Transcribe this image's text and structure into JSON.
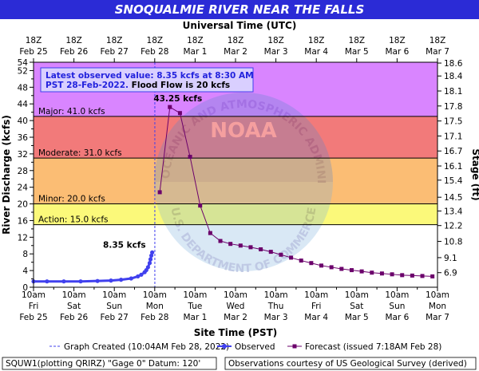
{
  "title": "SNOQUALMIE RIVER NEAR THE FALLS",
  "top_axis_title": "Universal Time (UTC)",
  "bottom_axis_title": "Site Time (PST)",
  "left_axis_title": "River Discharge (kcfs)",
  "right_axis_title": "Stage (ft)",
  "info_box": {
    "line1": "Latest observed value: 8.35 kcfs at 8:30 AM",
    "line2_a": "PST 28-Feb-2022.",
    "line2_b": " Flood Flow is 20 kcfs"
  },
  "annotations": {
    "peak": "43.25 kcfs",
    "latest": "8.35 kcfs"
  },
  "legend": {
    "created": "Graph Created (10:04AM Feb 28, 2022)",
    "observed": "Observed",
    "forecast": "Forecast (issued 7:18AM Feb 28)"
  },
  "footer": {
    "left": "SQUW1(plotting QRIRZ) \"Gage 0\" Datum: 120'",
    "right": "Observations courtesy of US Geological Survey (derived)"
  },
  "watermark": {
    "top": "NATIONAL OCEANIC AND ATMOSPHERIC ADMINISTRATION",
    "bottom": "U.S. DEPARTMENT OF COMMERCE",
    "center": "NOAA"
  },
  "colors": {
    "title_bg": "#2b2bd6",
    "major": "#d985ff",
    "moderate": "#f27a7a",
    "minor": "#fbbd74",
    "action": "#fbf97a",
    "normal": "#ffffff",
    "observed": "#4040ee",
    "forecast": "#6b006b",
    "created_line": "#4040ee"
  },
  "chart_data": {
    "type": "line",
    "title": "SNOQUALMIE RIVER NEAR THE FALLS",
    "xlabel": "Site Time (PST)",
    "ylabel": "River Discharge (kcfs)",
    "y2label": "Stage (ft)",
    "x_top_label": "Universal Time (UTC)",
    "ylim": [
      0,
      54
    ],
    "xlim": [
      "2022-02-25 10:00",
      "2022-03-07 10:00"
    ],
    "y_ticks": [
      0,
      4,
      8,
      12,
      16,
      20,
      24,
      28,
      32,
      36,
      40,
      44,
      48,
      52,
      54
    ],
    "y_minor_ticks": [
      2,
      6,
      10,
      14,
      18,
      22,
      26,
      30,
      34,
      38,
      42,
      46,
      50
    ],
    "right_ticks": [
      {
        "label": "6.9",
        "flow": 3.5
      },
      {
        "label": "9.1",
        "flow": 7.1
      },
      {
        "label": "10.8",
        "flow": 11.0
      },
      {
        "label": "12.2",
        "flow": 14.8
      },
      {
        "label": "13.4",
        "flow": 18.3
      },
      {
        "label": "14.5",
        "flow": 21.6
      },
      {
        "label": "15.4",
        "flow": 25.7
      },
      {
        "label": "16.1",
        "flow": 29.1
      },
      {
        "label": "16.7",
        "flow": 32.7
      },
      {
        "label": "17.1",
        "flow": 36.3
      },
      {
        "label": "17.5",
        "flow": 39.9
      },
      {
        "label": "17.8",
        "flow": 43.5
      },
      {
        "label": "18.1",
        "flow": 47.1
      },
      {
        "label": "18.4",
        "flow": 50.7
      },
      {
        "label": "18.6",
        "flow": 53.8
      }
    ],
    "x_ticks_bottom": [
      {
        "t": "2022-02-25 10:00",
        "l1": "10am",
        "l2": "Fri",
        "l3": "Feb 25"
      },
      {
        "t": "2022-02-26 10:00",
        "l1": "10am",
        "l2": "Sat",
        "l3": "Feb 26"
      },
      {
        "t": "2022-02-27 10:00",
        "l1": "10am",
        "l2": "Sun",
        "l3": "Feb 27"
      },
      {
        "t": "2022-02-28 10:00",
        "l1": "10am",
        "l2": "Mon",
        "l3": "Feb 28"
      },
      {
        "t": "2022-03-01 10:00",
        "l1": "10am",
        "l2": "Tue",
        "l3": "Mar 1"
      },
      {
        "t": "2022-03-02 10:00",
        "l1": "10am",
        "l2": "Wed",
        "l3": "Mar 2"
      },
      {
        "t": "2022-03-03 10:00",
        "l1": "10am",
        "l2": "Thu",
        "l3": "Mar 3"
      },
      {
        "t": "2022-03-04 10:00",
        "l1": "10am",
        "l2": "Fri",
        "l3": "Mar 4"
      },
      {
        "t": "2022-03-05 10:00",
        "l1": "10am",
        "l2": "Sat",
        "l3": "Mar 5"
      },
      {
        "t": "2022-03-06 10:00",
        "l1": "10am",
        "l2": "Sun",
        "l3": "Mar 6"
      },
      {
        "t": "2022-03-07 10:00",
        "l1": "10am",
        "l2": "Mon",
        "l3": "Mar 7"
      }
    ],
    "x_ticks_top": [
      {
        "t": "2022-02-25 10:00",
        "l1": "18Z",
        "l2": "Feb 25"
      },
      {
        "t": "2022-02-26 10:00",
        "l1": "18Z",
        "l2": "Feb 26"
      },
      {
        "t": "2022-02-27 10:00",
        "l1": "18Z",
        "l2": "Feb 27"
      },
      {
        "t": "2022-02-28 10:00",
        "l1": "18Z",
        "l2": "Feb 28"
      },
      {
        "t": "2022-03-01 10:00",
        "l1": "18Z",
        "l2": "Mar 1"
      },
      {
        "t": "2022-03-02 10:00",
        "l1": "18Z",
        "l2": "Mar 2"
      },
      {
        "t": "2022-03-03 10:00",
        "l1": "18Z",
        "l2": "Mar 3"
      },
      {
        "t": "2022-03-04 10:00",
        "l1": "18Z",
        "l2": "Mar 4"
      },
      {
        "t": "2022-03-05 10:00",
        "l1": "18Z",
        "l2": "Mar 5"
      },
      {
        "t": "2022-03-06 10:00",
        "l1": "18Z",
        "l2": "Mar 6"
      },
      {
        "t": "2022-03-07 10:00",
        "l1": "18Z",
        "l2": "Mar 7"
      }
    ],
    "flood_categories": [
      {
        "name": "Action",
        "label": "Action: 15.0 kcfs",
        "from": 15,
        "to": 20
      },
      {
        "name": "Minor",
        "label": "Minor: 20.0 kcfs",
        "from": 20,
        "to": 31
      },
      {
        "name": "Moderate",
        "label": "Moderate: 31.0 kcfs",
        "from": 31,
        "to": 41
      },
      {
        "name": "Major",
        "label": "Major: 41.0 kcfs",
        "from": 41,
        "to": 54
      }
    ],
    "graph_created": "2022-02-28 10:04",
    "series": [
      {
        "name": "Observed",
        "points": [
          [
            "2022-02-25 10:00",
            1.4
          ],
          [
            "2022-02-25 18:00",
            1.4
          ],
          [
            "2022-02-26 04:00",
            1.4
          ],
          [
            "2022-02-26 14:00",
            1.4
          ],
          [
            "2022-02-27 00:00",
            1.5
          ],
          [
            "2022-02-27 08:00",
            1.6
          ],
          [
            "2022-02-27 14:00",
            1.8
          ],
          [
            "2022-02-27 20:00",
            2.1
          ],
          [
            "2022-02-28 00:00",
            2.6
          ],
          [
            "2022-02-28 02:00",
            3.0
          ],
          [
            "2022-02-28 04:00",
            3.6
          ],
          [
            "2022-02-28 05:00",
            4.1
          ],
          [
            "2022-02-28 06:00",
            4.8
          ],
          [
            "2022-02-28 07:00",
            5.8
          ],
          [
            "2022-02-28 07:30",
            6.7
          ],
          [
            "2022-02-28 08:00",
            7.6
          ],
          [
            "2022-02-28 08:30",
            8.35
          ]
        ]
      },
      {
        "name": "Forecast",
        "points": [
          [
            "2022-02-28 13:00",
            22.8
          ],
          [
            "2022-02-28 19:00",
            43.25
          ],
          [
            "2022-03-01 01:00",
            41.8
          ],
          [
            "2022-03-01 07:00",
            31.3
          ],
          [
            "2022-03-01 13:00",
            19.6
          ],
          [
            "2022-03-01 19:00",
            13.0
          ],
          [
            "2022-03-02 01:00",
            11.1
          ],
          [
            "2022-03-02 07:00",
            10.4
          ],
          [
            "2022-03-02 13:00",
            10.0
          ],
          [
            "2022-03-02 19:00",
            9.6
          ],
          [
            "2022-03-03 01:00",
            9.1
          ],
          [
            "2022-03-03 07:00",
            8.5
          ],
          [
            "2022-03-03 13:00",
            7.8
          ],
          [
            "2022-03-03 19:00",
            7.1
          ],
          [
            "2022-03-04 01:00",
            6.4
          ],
          [
            "2022-03-04 07:00",
            5.8
          ],
          [
            "2022-03-04 13:00",
            5.2
          ],
          [
            "2022-03-04 19:00",
            4.8
          ],
          [
            "2022-03-05 01:00",
            4.4
          ],
          [
            "2022-03-05 07:00",
            4.1
          ],
          [
            "2022-03-05 13:00",
            3.8
          ],
          [
            "2022-03-05 19:00",
            3.5
          ],
          [
            "2022-03-06 01:00",
            3.3
          ],
          [
            "2022-03-06 07:00",
            3.1
          ],
          [
            "2022-03-06 13:00",
            2.9
          ],
          [
            "2022-03-06 19:00",
            2.8
          ],
          [
            "2022-03-07 01:00",
            2.7
          ],
          [
            "2022-03-07 07:00",
            2.6
          ]
        ]
      }
    ],
    "peak": {
      "t": "2022-02-28 19:00",
      "v": 43.25
    },
    "latest": {
      "t": "2022-02-28 08:30",
      "v": 8.35
    },
    "grid": false,
    "legend_position": "bottom"
  }
}
